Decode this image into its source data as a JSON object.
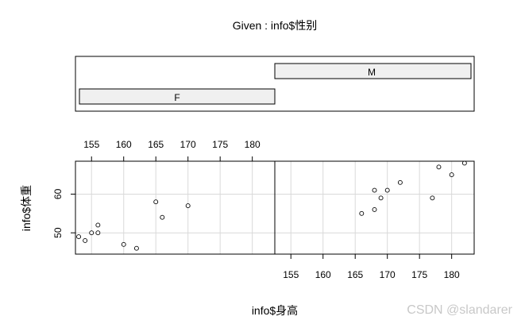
{
  "chart_data": {
    "type": "scatter",
    "title": "Given : info$性别",
    "xlabel": "info$身高",
    "ylabel": "info$体重",
    "xlim": [
      152.5,
      183.5
    ],
    "ylim": [
      44.5,
      68.5
    ],
    "x_ticks": [
      155,
      160,
      165,
      170,
      175,
      180
    ],
    "y_ticks": [
      50,
      60
    ],
    "grid": true,
    "given_levels": [
      "F",
      "M"
    ],
    "panels": [
      {
        "given": "F",
        "points": [
          {
            "x": 153,
            "y": 49
          },
          {
            "x": 154,
            "y": 48
          },
          {
            "x": 155,
            "y": 50
          },
          {
            "x": 156,
            "y": 50
          },
          {
            "x": 156,
            "y": 52
          },
          {
            "x": 160,
            "y": 47
          },
          {
            "x": 162,
            "y": 46
          },
          {
            "x": 165,
            "y": 58
          },
          {
            "x": 166,
            "y": 54
          },
          {
            "x": 170,
            "y": 57
          }
        ]
      },
      {
        "given": "M",
        "points": [
          {
            "x": 166,
            "y": 55
          },
          {
            "x": 168,
            "y": 56
          },
          {
            "x": 168,
            "y": 61
          },
          {
            "x": 169,
            "y": 59
          },
          {
            "x": 170,
            "y": 61
          },
          {
            "x": 172,
            "y": 63
          },
          {
            "x": 177,
            "y": 59
          },
          {
            "x": 178,
            "y": 67
          },
          {
            "x": 180,
            "y": 65
          },
          {
            "x": 182,
            "y": 68
          }
        ]
      }
    ]
  },
  "watermark": "CSDN @slandarer"
}
